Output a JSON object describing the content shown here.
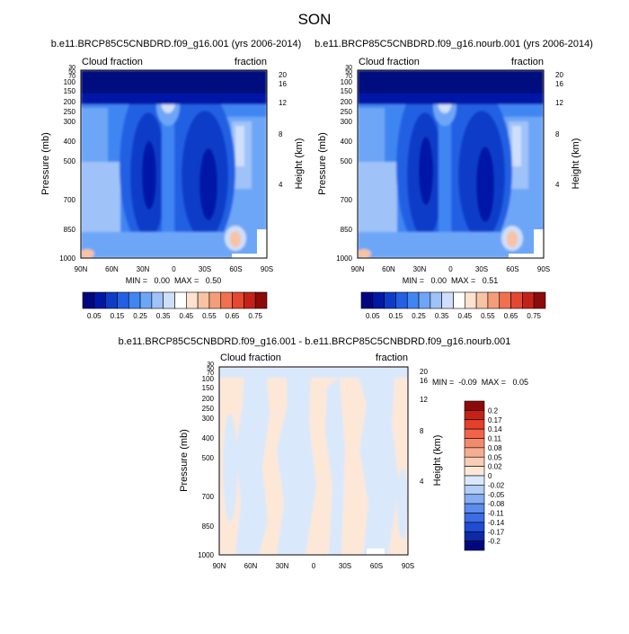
{
  "page_title": "SON",
  "chart_data": [
    {
      "type": "heatmap",
      "title": "b.e11.BRCP85C5CNBDRD.f09_g16.001 (yrs 2006-2014)",
      "left_label": "Cloud fraction",
      "right_label": "fraction",
      "ylabel": "Pressure (mb)",
      "y2label": "Height (km)",
      "x_ticks": [
        "90N",
        "60N",
        "30N",
        "0",
        "30S",
        "60S",
        "90S"
      ],
      "y_ticks": [
        "1000",
        "850",
        "700",
        "500",
        "400",
        "300",
        "250",
        "200",
        "150",
        "100",
        "70",
        "50",
        "30"
      ],
      "y2_ticks": [
        "4",
        "8",
        "12",
        "16",
        "20"
      ],
      "stats": "MIN =   0.00  MAX =   0.50",
      "min": 0.0,
      "max": 0.5
    },
    {
      "type": "heatmap",
      "title": "b.e11.BRCP85C5CNBDRD.f09_g16.nourb.001 (yrs 2006-2014)",
      "left_label": "Cloud fraction",
      "right_label": "fraction",
      "ylabel": "Pressure (mb)",
      "y2label": "Height (km)",
      "x_ticks": [
        "90N",
        "60N",
        "30N",
        "0",
        "30S",
        "60S",
        "90S"
      ],
      "y_ticks": [
        "1000",
        "850",
        "700",
        "500",
        "400",
        "300",
        "250",
        "200",
        "150",
        "100",
        "70",
        "50",
        "30"
      ],
      "y2_ticks": [
        "4",
        "8",
        "12",
        "16",
        "20"
      ],
      "stats": "MIN =   0.00  MAX =   0.51",
      "min": 0.0,
      "max": 0.51
    },
    {
      "type": "heatmap",
      "title": "b.e11.BRCP85C5CNBDRD.f09_g16.001 - b.e11.BRCP85C5CNBDRD.f09_g16.nourb.001",
      "left_label": "Cloud fraction",
      "right_label": "fraction",
      "ylabel": "Pressure (mb)",
      "y2label": "Height (km)",
      "x_ticks": [
        "90N",
        "60N",
        "30N",
        "0",
        "30S",
        "60S",
        "90S"
      ],
      "y_ticks": [
        "1000",
        "850",
        "700",
        "500",
        "400",
        "300",
        "250",
        "200",
        "150",
        "100",
        "70",
        "50",
        "30"
      ],
      "y2_ticks": [
        "4",
        "8",
        "12",
        "16",
        "20"
      ],
      "stats": "MIN =  -0.09  MAX =   0.05",
      "min": -0.09,
      "max": 0.05
    }
  ],
  "colorbar_main": {
    "labels": [
      "0.05",
      "0.15",
      "0.25",
      "0.35",
      "0.45",
      "0.55",
      "0.65",
      "0.75"
    ],
    "colors": [
      "#00077e",
      "#0018a6",
      "#0d3cc8",
      "#2360e3",
      "#3f86f2",
      "#6ea6f7",
      "#9fc2f8",
      "#cfdefb",
      "#ffffff",
      "#fce2cf",
      "#f8c2a4",
      "#f59d79",
      "#f1714f",
      "#e44830",
      "#c42218",
      "#8c0a0a"
    ]
  },
  "colorbar_diff": {
    "labels": [
      "0.2",
      "0.17",
      "0.14",
      "0.11",
      "0.08",
      "0.05",
      "0.02",
      "0",
      "-0.02",
      "-0.05",
      "-0.08",
      "-0.11",
      "-0.14",
      "-0.17",
      "-0.2"
    ],
    "colors": [
      "#8c0a0a",
      "#c42218",
      "#e4402a",
      "#f1644a",
      "#f38a6c",
      "#f6ae92",
      "#f9cdb6",
      "#fde8d8",
      "#d9e8fb",
      "#b2cdf6",
      "#86aef2",
      "#5c8cee",
      "#3a6de6",
      "#1f4cd4",
      "#0b2aa8",
      "#00077e"
    ]
  }
}
